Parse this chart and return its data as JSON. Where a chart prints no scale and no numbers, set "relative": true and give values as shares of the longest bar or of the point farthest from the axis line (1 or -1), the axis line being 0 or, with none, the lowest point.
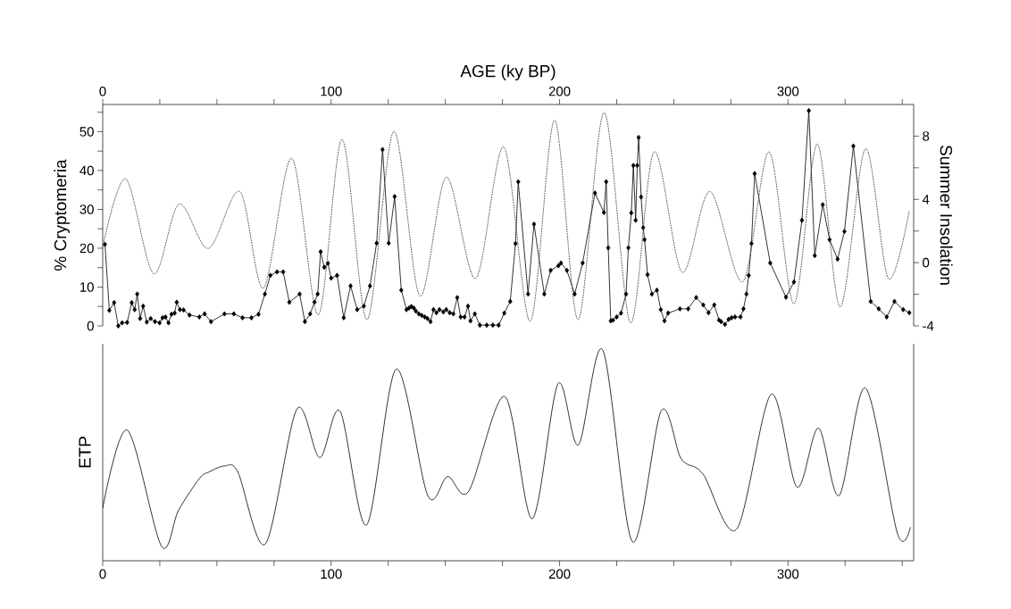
{
  "chart_data": [
    {
      "type": "line",
      "xlabel": "AGE  (ky BP)",
      "ylabel": "% Cryptomeria",
      "y2label": "Summer  Insolation",
      "xlim": [
        0,
        355
      ],
      "xticks": [
        0,
        {
          "value": 25,
          "label": null
        },
        {
          "value": 50,
          "label": null
        },
        {
          "value": 75,
          "label": null
        },
        100,
        {
          "value": 125,
          "label": null
        },
        {
          "value": 150,
          "label": null
        },
        {
          "value": 175,
          "label": null
        },
        200,
        {
          "value": 225,
          "label": null
        },
        {
          "value": 250,
          "label": null
        },
        {
          "value": 275,
          "label": null
        },
        300,
        {
          "value": 325,
          "label": null
        },
        {
          "value": 350,
          "label": null
        }
      ],
      "ylim": [
        0,
        57
      ],
      "yticks": [
        0,
        {
          "value": 5,
          "label": null
        },
        10,
        {
          "value": 15,
          "label": null
        },
        20,
        {
          "value": 25,
          "label": null
        },
        30,
        {
          "value": 35,
          "label": null
        },
        40,
        {
          "value": 45,
          "label": null
        },
        50,
        {
          "value": 55,
          "label": null
        }
      ],
      "y2lim": [
        -4,
        10
      ],
      "y2ticks": [
        -4,
        {
          "value": -2,
          "label": null
        },
        0,
        {
          "value": 2,
          "label": null
        },
        4,
        {
          "value": 6,
          "label": null
        },
        8
      ],
      "series": [
        {
          "color": "#000000",
          "marker": "diamond",
          "line_style": "solid",
          "x": [
            1,
            2.9,
            5,
            6.8,
            8.5,
            10.7,
            12.7,
            14,
            15.1,
            16.4,
            17.7,
            19.3,
            21,
            22.9,
            24.9,
            26.2,
            27.5,
            28.8,
            30.1,
            31.5,
            32.4,
            33.8,
            35.4,
            38,
            42.3,
            44.6,
            47.4,
            53.3,
            57.4,
            61.2,
            65.1,
            68.2,
            71,
            73.4,
            76.3,
            79,
            81.7,
            86.2,
            88.5,
            90.8,
            92.7,
            94.1,
            95.4,
            97,
            98.6,
            100,
            102.6,
            105.5,
            108.5,
            111.4,
            114.3,
            117,
            119.9,
            122.5,
            125.2,
            127.8,
            130.7,
            133,
            134.1,
            135.1,
            136.2,
            137.1,
            138.4,
            139.7,
            141,
            142.2,
            143.5,
            144.8,
            146.1,
            147.4,
            149.1,
            150.4,
            151.9,
            153.5,
            155.2,
            156.7,
            158.4,
            159.9,
            161,
            162.9,
            165.1,
            168.1,
            170.8,
            173.3,
            175.8,
            178.4,
            180.7,
            181.9,
            186.2,
            188.8,
            193.3,
            196.1,
            199.5,
            200.6,
            203.2,
            206.6,
            210.1,
            215.5,
            219.4,
            220.4,
            221.3,
            222.4,
            223.4,
            225,
            226.9,
            229.1,
            230.1,
            231.4,
            232.3,
            233.3,
            234,
            234.6,
            235.7,
            236.6,
            237.2,
            238.5,
            240.4,
            242.6,
            244.3,
            245.9,
            247.5,
            252.7,
            256.3,
            259.8,
            262.9,
            265.2,
            267.7,
            269.8,
            270.7,
            272.4,
            274,
            275.3,
            276.8,
            279.2,
            280.5,
            281.8,
            282.8,
            284,
            285.4,
            292.2,
            299.1,
            302.6,
            306.1,
            309.1,
            311.7,
            315.2,
            318.2,
            321.7,
            324.7,
            328.6,
            336.2,
            339.7,
            343.2,
            346.6,
            350.4,
            353.1
          ],
          "values": [
            21,
            4,
            6,
            0,
            0.8,
            0.9,
            6,
            4.2,
            8.2,
            1.9,
            5.1,
            1,
            1.9,
            1.1,
            0.8,
            2.1,
            2.3,
            0.8,
            3,
            3.3,
            6.1,
            4.2,
            4.1,
            2.8,
            2.3,
            3.1,
            1.1,
            3.1,
            3.1,
            2.1,
            2.1,
            3,
            8.2,
            13,
            13.9,
            13.9,
            6.1,
            8.2,
            1.1,
            3.1,
            6.1,
            8.2,
            19.1,
            15.1,
            16.1,
            12.3,
            13,
            2.1,
            10.3,
            4.2,
            5.1,
            10.3,
            21.3,
            45.4,
            21.3,
            33.3,
            9.2,
            4.2,
            4.6,
            5,
            4.6,
            3.8,
            3.1,
            2.7,
            2.3,
            1.9,
            1.1,
            4.2,
            3.4,
            4.2,
            3.6,
            4.2,
            3.4,
            3.1,
            7.3,
            2.3,
            2.3,
            5.1,
            1.3,
            3.1,
            0.2,
            0.2,
            0.2,
            0.2,
            3.3,
            6.3,
            21.2,
            37.1,
            8.2,
            26.2,
            8.2,
            14.3,
            15.5,
            16.2,
            14.3,
            8.2,
            16.2,
            34.2,
            29.2,
            37.1,
            20.1,
            1.3,
            1.5,
            2.3,
            3.3,
            8.2,
            20.1,
            29.1,
            41.3,
            27.2,
            41.3,
            48.5,
            33.2,
            25.3,
            22.2,
            13.2,
            8.2,
            9.2,
            4.2,
            1.3,
            3.3,
            4.4,
            4.4,
            7.3,
            5.4,
            3.4,
            5.4,
            1.5,
            1.1,
            0.4,
            1.7,
            2.1,
            2.3,
            2.3,
            4.4,
            8.2,
            13,
            21.2,
            39.2,
            16.2,
            7.4,
            11.3,
            27.2,
            55.4,
            18.1,
            31.2,
            22.2,
            17.2,
            24.3,
            46.3,
            6.3,
            4.4,
            2.3,
            6.3,
            4.2,
            3.4
          ]
        },
        {
          "color": "#333333",
          "marker": "none",
          "line_style": "dotted",
          "axis": "y2",
          "x": [
            0,
            10.1,
            22.3,
            33.4,
            46.3,
            60,
            70.4,
            82.8,
            94.4,
            104.8,
            115.7,
            127.4,
            138.8,
            150.4,
            163.3,
            175.6,
            187.2,
            197.8,
            208.1,
            219.5,
            231,
            241.3,
            253.6,
            265.8,
            280.2,
            291.8,
            302.6,
            312.8,
            322.8,
            333.9,
            343.9,
            353.1
          ],
          "values": [
            1,
            5.3,
            -0.7,
            3.7,
            0.9,
            4.5,
            -1.6,
            6.6,
            -3.3,
            7.8,
            -3.6,
            8.3,
            -2.1,
            5.4,
            -1,
            7.3,
            -3.7,
            9,
            -3.6,
            9.5,
            -3.8,
            7,
            -0.6,
            4.5,
            -1.2,
            7,
            -2.6,
            7.5,
            -2.8,
            7.2,
            -1,
            3.3
          ]
        }
      ]
    },
    {
      "type": "line",
      "relative": true,
      "ylabel": "ETP",
      "xlim": [
        0,
        355
      ],
      "xticks": [
        0,
        {
          "value": 25,
          "label": null
        },
        {
          "value": 50,
          "label": null
        },
        {
          "value": 75,
          "label": null
        },
        100,
        {
          "value": 125,
          "label": null
        },
        {
          "value": 150,
          "label": null
        },
        {
          "value": 175,
          "label": null
        },
        200,
        {
          "value": 225,
          "label": null
        },
        {
          "value": 250,
          "label": null
        },
        {
          "value": 275,
          "label": null
        },
        300,
        {
          "value": 325,
          "label": null
        },
        {
          "value": 350,
          "label": null
        }
      ],
      "series": [
        {
          "color": "#000000",
          "marker": "none",
          "line_style": "solid",
          "x": [
            0,
            10.8,
            25.7,
            33.2,
            42.3,
            46.2,
            53.4,
            59.2,
            71.2,
            85,
            95,
            103.9,
            115.5,
            128.5,
            142.3,
            151,
            160.2,
            176,
            188,
            199.3,
            208.2,
            218.9,
            231.9,
            244.4,
            252.5,
            255.7,
            262.9,
            277.5,
            292.6,
            303.9,
            313.3,
            322.4,
            333.9,
            347.9,
            353.6
          ],
          "values": [
            0.25,
            0.62,
            0.07,
            0.24,
            0.39,
            0.42,
            0.45,
            0.42,
            0.08,
            0.72,
            0.49,
            0.71,
            0.17,
            0.91,
            0.31,
            0.4,
            0.33,
            0.78,
            0.2,
            0.84,
            0.55,
            1,
            0.09,
            0.71,
            0.5,
            0.46,
            0.41,
            0.15,
            0.79,
            0.35,
            0.63,
            0.31,
            0.82,
            0.13,
            0.16
          ]
        }
      ]
    }
  ]
}
